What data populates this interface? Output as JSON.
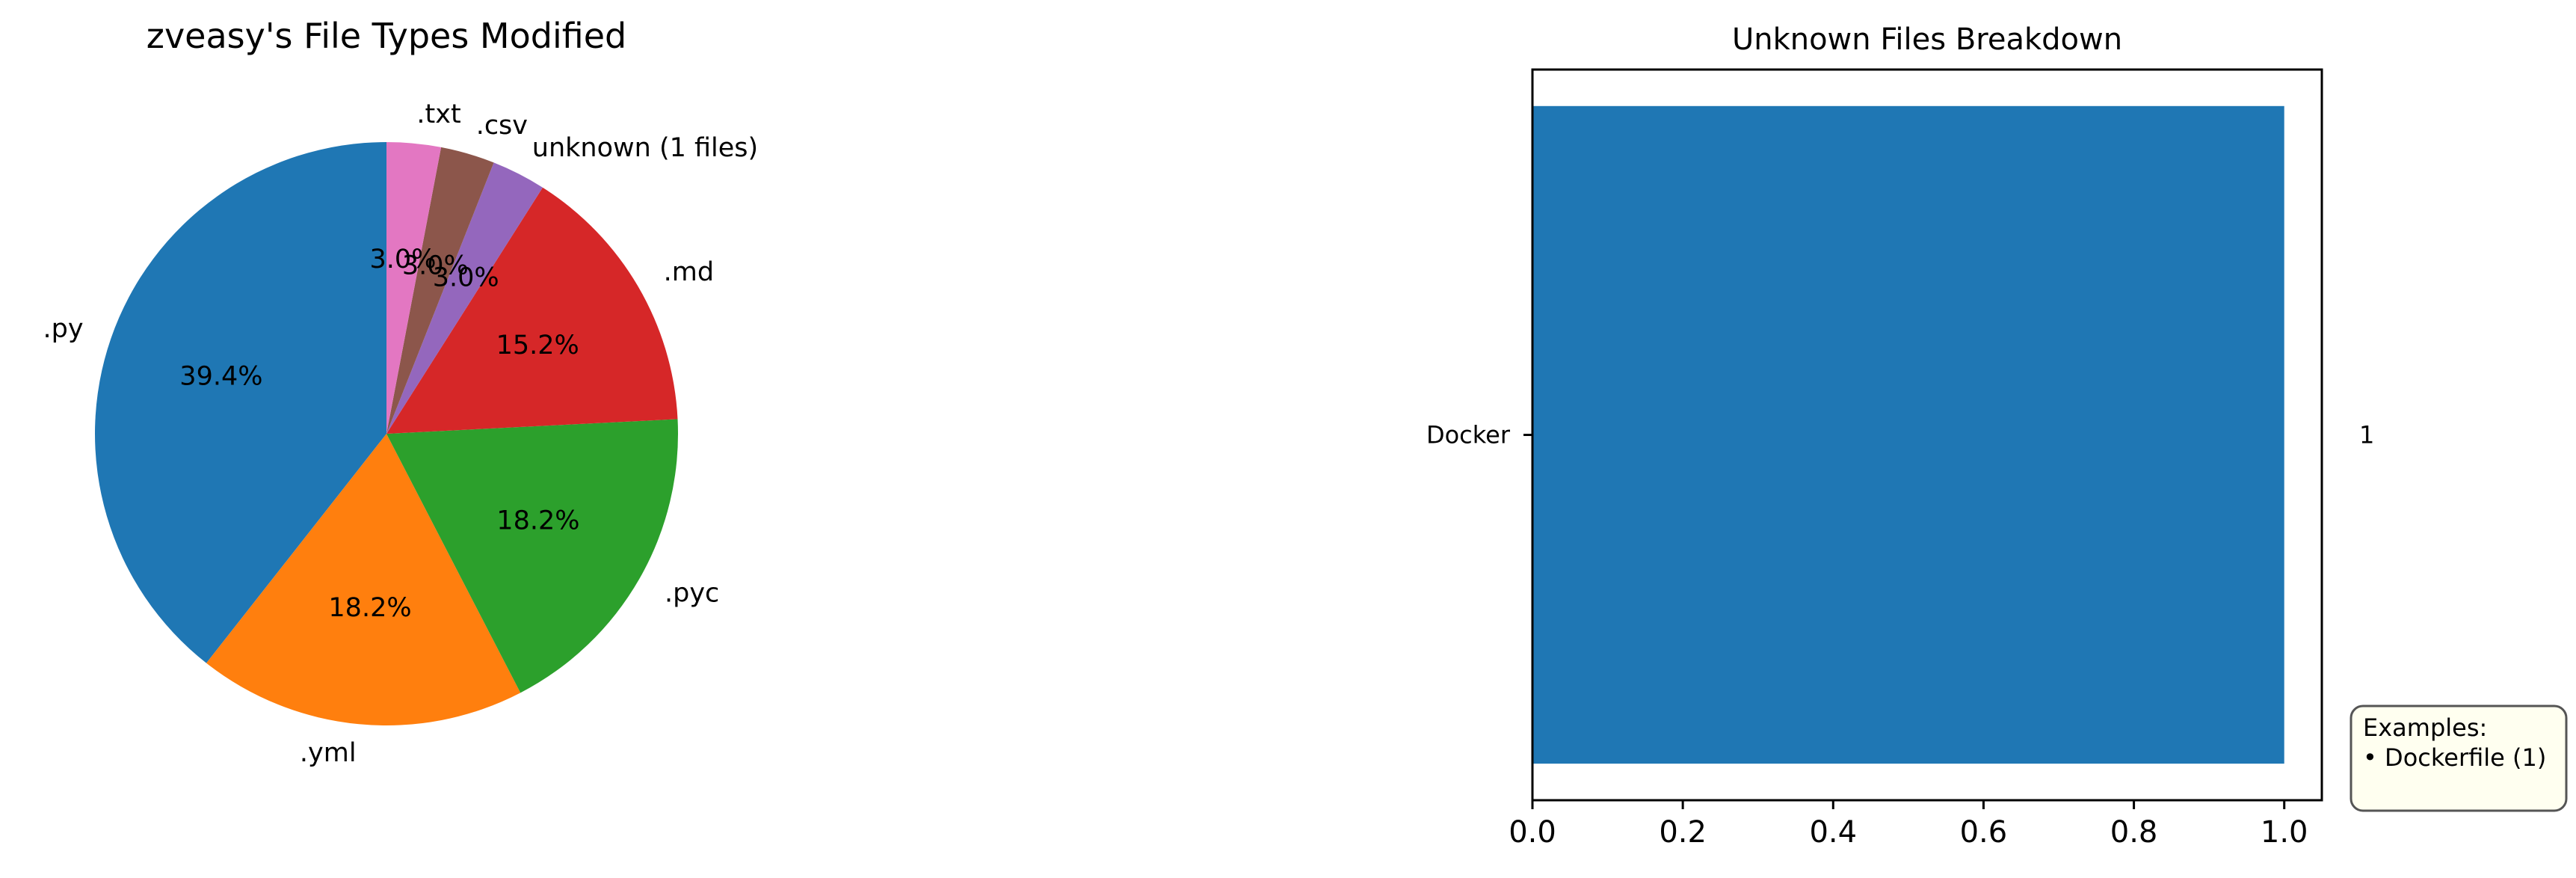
{
  "chart_data": [
    {
      "type": "pie",
      "title": "zveasy's File Types Modified",
      "labels": [
        ".py",
        ".yml",
        ".pyc",
        ".md",
        "unknown (1 files)",
        ".csv",
        ".txt"
      ],
      "values": [
        39.4,
        18.2,
        18.2,
        15.2,
        3.0,
        3.0,
        3.0
      ],
      "percent_labels": [
        "39.4%",
        "18.2%",
        "18.2%",
        "15.2%",
        "3.0%",
        "3.0%",
        "3.0%"
      ],
      "colors": [
        "#1f77b4",
        "#ff7f0e",
        "#2ca02c",
        "#d62728",
        "#9467bd",
        "#8c564b",
        "#e377c2"
      ],
      "start_angle_deg": 90,
      "direction": "counterclockwise"
    },
    {
      "type": "bar",
      "orientation": "horizontal",
      "title": "Unknown Files Breakdown",
      "categories": [
        "Docker"
      ],
      "values": [
        1
      ],
      "value_labels": [
        "1"
      ],
      "color": "#1f77b4",
      "xlim": [
        0.0,
        1.05
      ],
      "xticks": [
        0.0,
        0.2,
        0.4,
        0.6,
        0.8,
        1.0
      ],
      "xtick_labels": [
        "0.0",
        "0.2",
        "0.4",
        "0.6",
        "0.8",
        "1.0"
      ],
      "grid": false,
      "annotation": {
        "lines": [
          "Examples:",
          "• Dockerfile (1)"
        ],
        "background": "#fffff0",
        "border": "#555555",
        "placement": "bottom-right, outside plot"
      }
    }
  ]
}
